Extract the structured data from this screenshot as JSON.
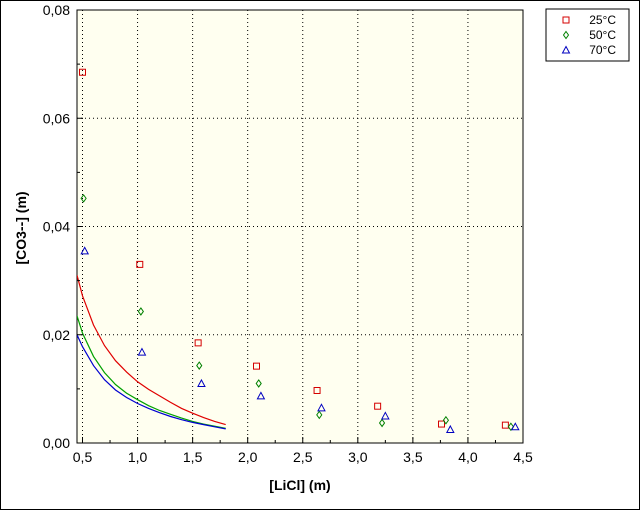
{
  "chart_data": {
    "type": "scatter",
    "title": "",
    "xlabel": "[LiCl] (m)",
    "ylabel": "[CO3--] (m)",
    "xlim": [
      0.45,
      4.5
    ],
    "ylim": [
      0.0,
      0.08
    ],
    "grid": true,
    "legend_position": "top-right",
    "x_ticks": [
      0.5,
      1.0,
      1.5,
      2.0,
      2.5,
      3.0,
      3.5,
      4.0,
      4.5
    ],
    "x_tick_labels": [
      "0,5",
      "1,0",
      "1,5",
      "2,0",
      "2,5",
      "3,0",
      "3,5",
      "4,0",
      "4,5"
    ],
    "y_ticks": [
      0.0,
      0.02,
      0.04,
      0.06,
      0.08
    ],
    "y_tick_labels": [
      "0,00",
      "0,02",
      "0,04",
      "0,06",
      "0,08"
    ],
    "series": [
      {
        "name": "25°C",
        "marker": "square",
        "color": "#d40000",
        "x": [
          0.5,
          1.02,
          1.55,
          2.08,
          2.63,
          3.18,
          3.76,
          4.34
        ],
        "y": [
          0.0685,
          0.033,
          0.0185,
          0.0142,
          0.0097,
          0.0068,
          0.0035,
          0.0033
        ]
      },
      {
        "name": "50°C",
        "marker": "diamond",
        "color": "#008000",
        "x": [
          0.51,
          1.03,
          1.56,
          2.1,
          2.65,
          3.22,
          3.8,
          4.39
        ],
        "y": [
          0.0452,
          0.0243,
          0.0143,
          0.011,
          0.0052,
          0.0037,
          0.0042,
          0.003
        ]
      },
      {
        "name": "70°C",
        "marker": "triangle",
        "color": "#0000c0",
        "x": [
          0.52,
          1.04,
          1.58,
          2.12,
          2.67,
          3.25,
          3.84,
          4.43
        ],
        "y": [
          0.0355,
          0.0168,
          0.011,
          0.0087,
          0.0065,
          0.005,
          0.0025,
          0.003
        ]
      }
    ],
    "fit_curves": [
      {
        "name": "25°C fit",
        "color": "#e00000",
        "x": [
          0.45,
          0.5,
          0.6,
          0.7,
          0.8,
          0.9,
          1.0,
          1.1,
          1.2,
          1.3,
          1.4,
          1.5,
          1.6,
          1.7,
          1.8
        ],
        "y": [
          0.031,
          0.0272,
          0.0218,
          0.018,
          0.0152,
          0.0131,
          0.0113,
          0.0099,
          0.0087,
          0.0075,
          0.0064,
          0.0055,
          0.0047,
          0.004,
          0.0034
        ]
      },
      {
        "name": "50°C fit",
        "color": "#00a000",
        "x": [
          0.45,
          0.5,
          0.6,
          0.7,
          0.8,
          0.9,
          1.0,
          1.1,
          1.2,
          1.3,
          1.4,
          1.5,
          1.6,
          1.7,
          1.8
        ],
        "y": [
          0.0235,
          0.0203,
          0.016,
          0.013,
          0.0108,
          0.0092,
          0.008,
          0.0069,
          0.006,
          0.0053,
          0.0046,
          0.004,
          0.0035,
          0.0031,
          0.0027
        ]
      },
      {
        "name": "70°C fit",
        "color": "#0000d0",
        "x": [
          0.45,
          0.5,
          0.6,
          0.7,
          0.8,
          0.9,
          1.0,
          1.1,
          1.2,
          1.3,
          1.4,
          1.5,
          1.6,
          1.7,
          1.8
        ],
        "y": [
          0.02,
          0.0178,
          0.0143,
          0.0117,
          0.0098,
          0.0084,
          0.0073,
          0.0064,
          0.0056,
          0.0049,
          0.0043,
          0.0038,
          0.0034,
          0.003,
          0.0026
        ]
      }
    ]
  }
}
